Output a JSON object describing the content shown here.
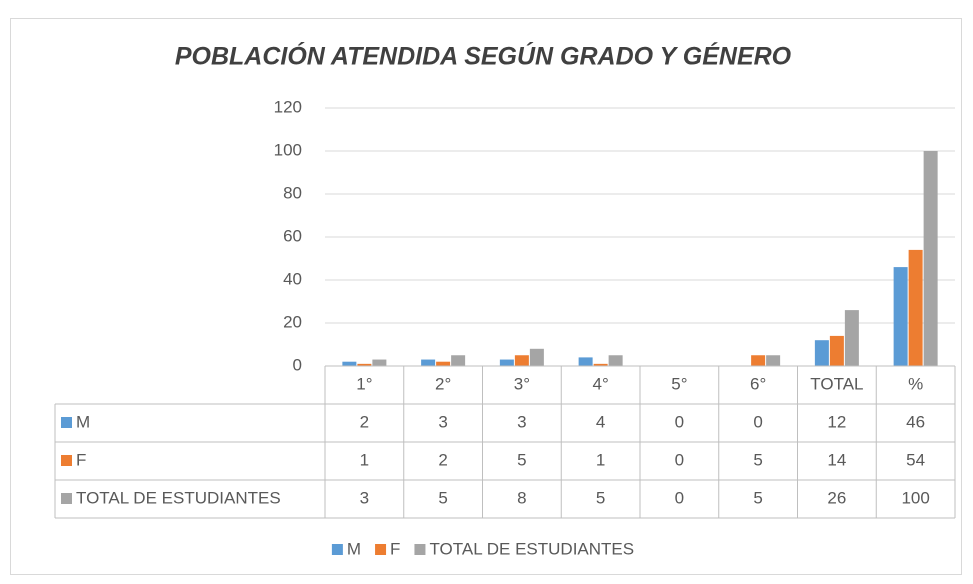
{
  "chart_data": {
    "type": "bar",
    "title": "POBLACIÓN ATENDIDA SEGÚN GRADO Y GÉNERO",
    "categories": [
      "1°",
      "2°",
      "3°",
      "4°",
      "5°",
      "6°",
      "TOTAL",
      "%"
    ],
    "series": [
      {
        "name": "M",
        "color": "#5b9bd5",
        "values": [
          2,
          3,
          3,
          4,
          0,
          0,
          12,
          46
        ]
      },
      {
        "name": "F",
        "color": "#ed7d31",
        "values": [
          1,
          2,
          5,
          1,
          0,
          5,
          14,
          54
        ]
      },
      {
        "name": "TOTAL DE ESTUDIANTES",
        "color": "#a5a5a5",
        "values": [
          3,
          5,
          8,
          5,
          0,
          5,
          26,
          100
        ]
      }
    ],
    "ylim": [
      0,
      120
    ],
    "yticks": [
      0,
      20,
      40,
      60,
      80,
      100,
      120
    ],
    "grid": true,
    "data_table": true,
    "legend": "bottom"
  }
}
